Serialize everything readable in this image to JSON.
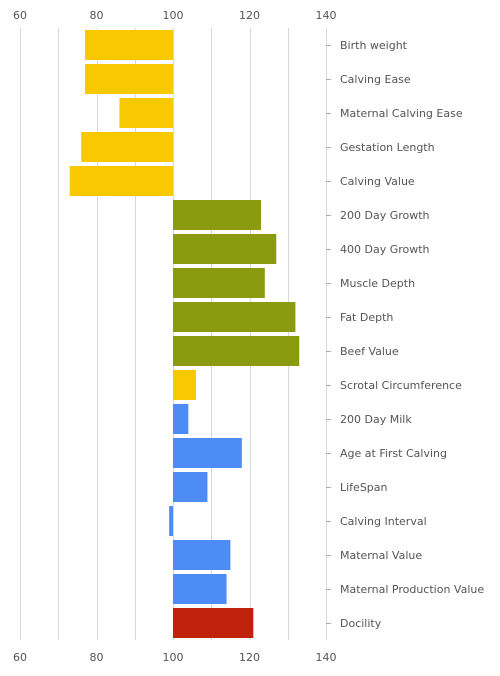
{
  "chart_data": {
    "type": "bar",
    "orientation": "horizontal",
    "baseline": 100,
    "xlim": [
      60,
      140
    ],
    "xticks": [
      60,
      80,
      100,
      120,
      140
    ],
    "xtick_labels": [
      "60",
      "80",
      "100",
      "120",
      "140"
    ],
    "grid": true,
    "colors": {
      "birth": "#f8c900",
      "growth": "#8a9b0f",
      "maternal": "#4e8cf5",
      "docility": "#c0220c",
      "grid": "#d9d9d9",
      "text": "#555555"
    },
    "categories": [
      {
        "label": "Birth weight",
        "value": 77,
        "color_key": "birth"
      },
      {
        "label": "Calving Ease",
        "value": 77,
        "color_key": "birth"
      },
      {
        "label": "Maternal Calving Ease",
        "value": 86,
        "color_key": "birth"
      },
      {
        "label": "Gestation Length",
        "value": 76,
        "color_key": "birth"
      },
      {
        "label": "Calving Value",
        "value": 73,
        "color_key": "birth"
      },
      {
        "label": "200 Day Growth",
        "value": 123,
        "color_key": "growth"
      },
      {
        "label": "400 Day Growth",
        "value": 127,
        "color_key": "growth"
      },
      {
        "label": "Muscle Depth",
        "value": 124,
        "color_key": "growth"
      },
      {
        "label": "Fat Depth",
        "value": 132,
        "color_key": "growth"
      },
      {
        "label": "Beef Value",
        "value": 133,
        "color_key": "growth"
      },
      {
        "label": "Scrotal Circumference",
        "value": 106,
        "color_key": "birth"
      },
      {
        "label": "200 Day Milk",
        "value": 104,
        "color_key": "maternal"
      },
      {
        "label": "Age at First Calving",
        "value": 118,
        "color_key": "maternal"
      },
      {
        "label": "LifeSpan",
        "value": 109,
        "color_key": "maternal"
      },
      {
        "label": "Calving Interval",
        "value": 99,
        "color_key": "maternal"
      },
      {
        "label": "Maternal Value",
        "value": 115,
        "color_key": "maternal"
      },
      {
        "label": "Maternal Production Value",
        "value": 114,
        "color_key": "maternal"
      },
      {
        "label": "Docility",
        "value": 121,
        "color_key": "docility"
      }
    ]
  }
}
